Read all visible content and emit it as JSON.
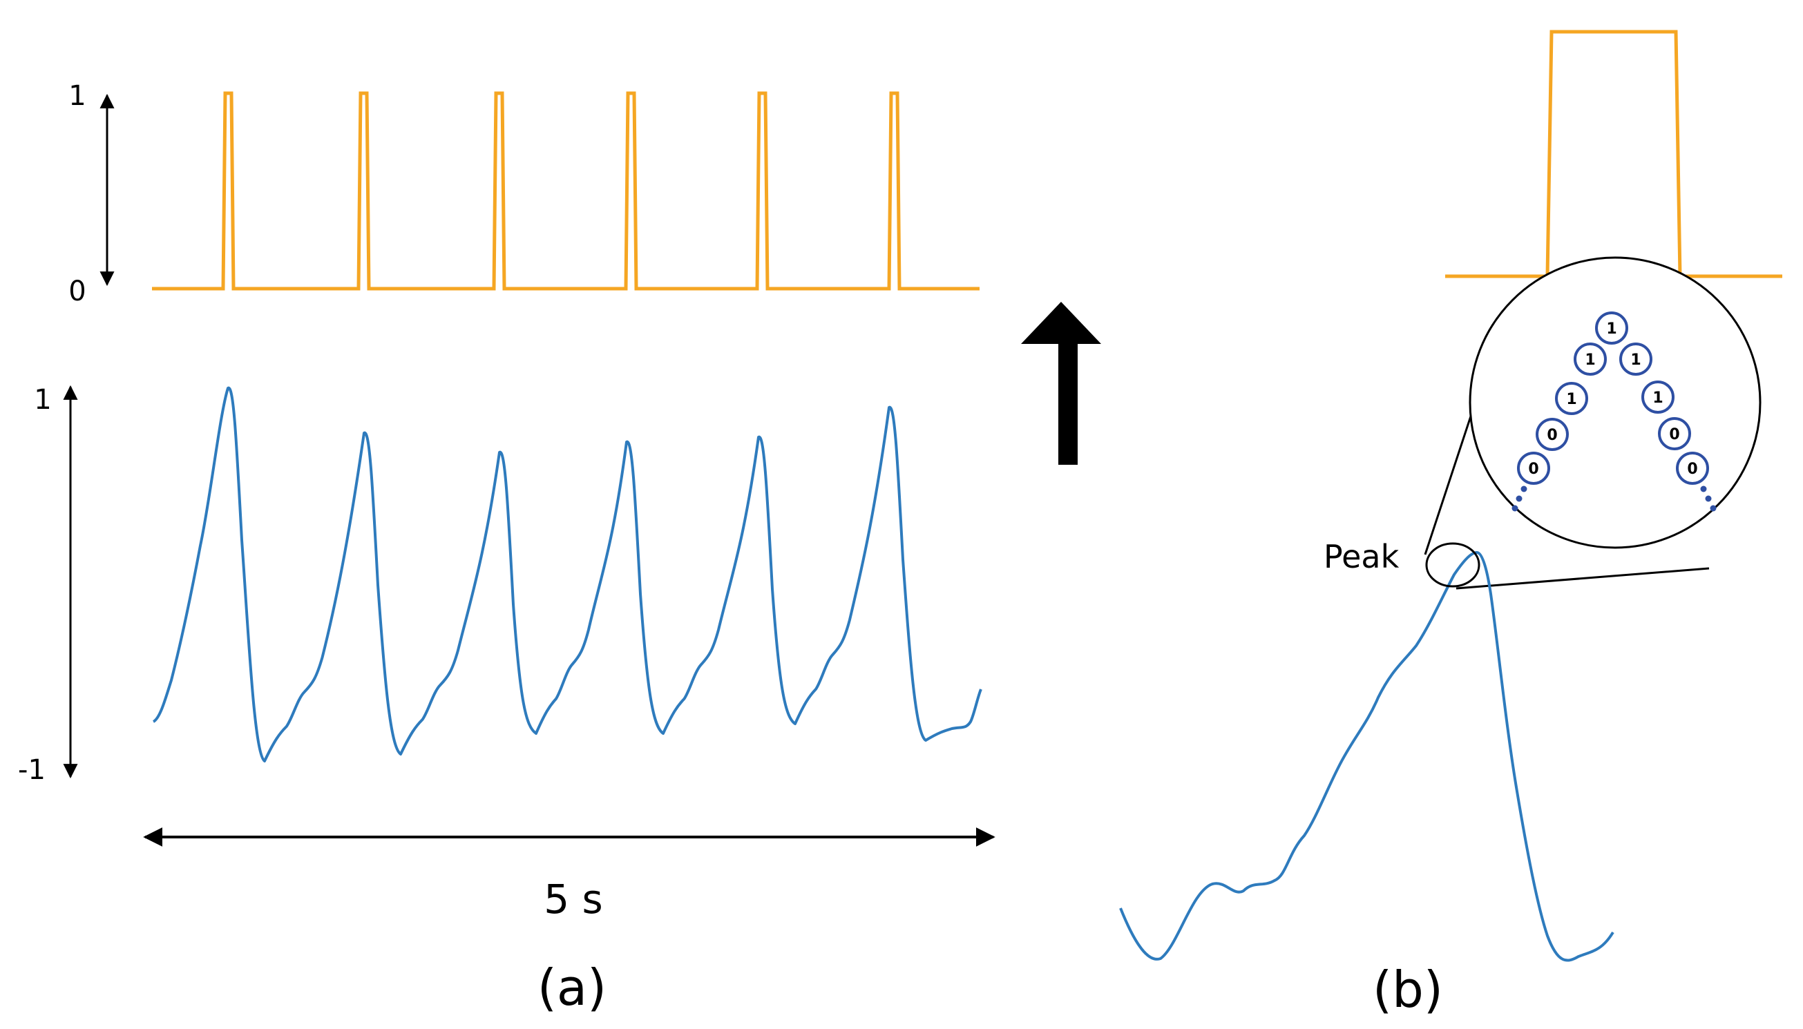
{
  "colors": {
    "pulse": "#f5a623",
    "signal": "#2e7bbd",
    "node_ring": "#2e4fa3",
    "arrow": "#000000"
  },
  "panel_a": {
    "caption": "(a)",
    "duration_label": "5 s",
    "pulse_axis": {
      "top": "1",
      "bottom": "0"
    },
    "signal_axis": {
      "top": "1",
      "bottom": "-1"
    },
    "pulse_count": 6
  },
  "panel_b": {
    "caption": "(b)",
    "peak_label": "Peak",
    "peak_bits_left": [
      "0",
      "0",
      "1",
      "1"
    ],
    "peak_bit_top": "1",
    "peak_bits_right": [
      "1",
      "1",
      "0",
      "0"
    ]
  }
}
